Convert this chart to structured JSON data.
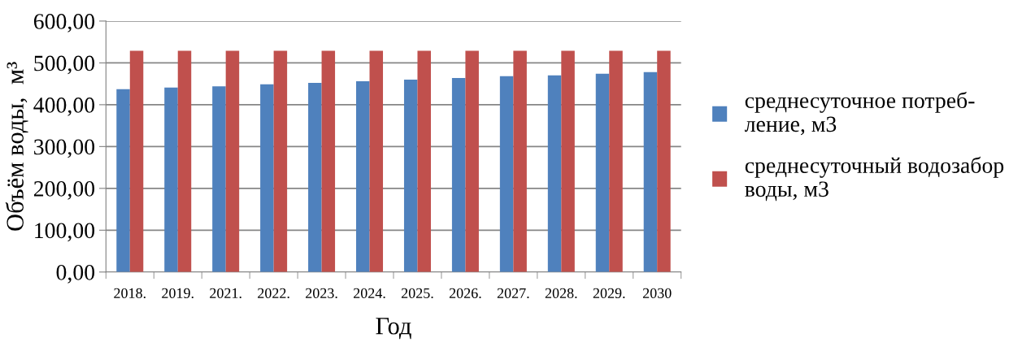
{
  "chart_data": {
    "type": "bar",
    "xlabel": "Год",
    "ylabel": "Объём воды,  м³",
    "categories": [
      "2018.",
      "2019.",
      "2021.",
      "2022.",
      "2023.",
      "2024.",
      "2025.",
      "2026.",
      "2027.",
      "2028.",
      "2029.",
      "2030"
    ],
    "series": [
      {
        "name": "среднесуточное потреб-\nление, м3",
        "color": "#4f81bd",
        "values": [
          437,
          441,
          444,
          449,
          452,
          456,
          460,
          464,
          468,
          470,
          474,
          478
        ]
      },
      {
        "name": "среднесуточный водозабор\nводы, м3",
        "color": "#c0504d",
        "values": [
          529,
          529,
          529,
          529,
          529,
          529,
          529,
          529,
          529,
          529,
          529,
          529
        ]
      }
    ],
    "ylim": [
      0,
      600
    ],
    "yticks": [
      {
        "value": 0,
        "label": "0,00"
      },
      {
        "value": 100,
        "label": "100,00"
      },
      {
        "value": 200,
        "label": "200,00"
      },
      {
        "value": 300,
        "label": "300,00"
      },
      {
        "value": 400,
        "label": "400,00"
      },
      {
        "value": 500,
        "label": "500,00"
      },
      {
        "value": 600,
        "label": "600,00"
      }
    ],
    "grid": "y",
    "legend": "right"
  }
}
